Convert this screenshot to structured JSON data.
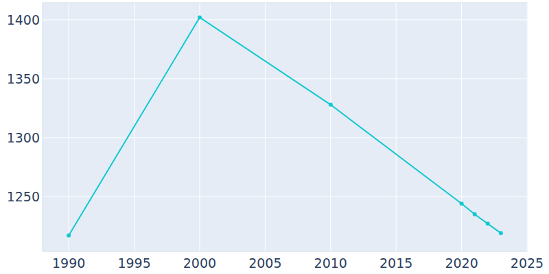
{
  "chart_data": {
    "type": "line",
    "x": [
      1990,
      2000,
      2010,
      2020,
      2021,
      2022,
      2023
    ],
    "values": [
      1217,
      1402,
      1328,
      1244,
      1235,
      1227,
      1219
    ],
    "color": "#13c8d0",
    "marker": "circle",
    "xlim": [
      1988,
      2025
    ],
    "xticks": [
      1990,
      1995,
      2000,
      2005,
      2010,
      2015,
      2020,
      2025
    ],
    "ylim": [
      1203.5,
      1414.5
    ],
    "yticks": [
      1250,
      1300,
      1350,
      1400
    ],
    "grid": true
  }
}
